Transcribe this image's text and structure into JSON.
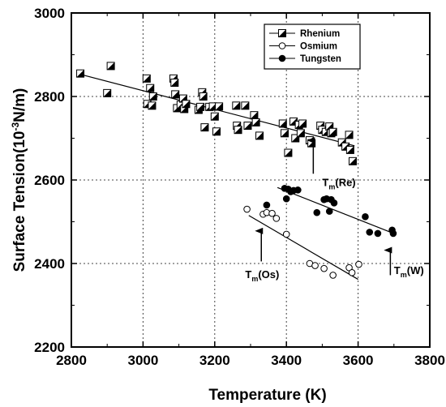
{
  "chart_data": {
    "type": "scatter",
    "xlabel": "Temperature (K)",
    "ylabel": "Surface Tension(10",
    "ylabel_sup": "-3",
    "ylabel_rest": "N/m)",
    "xlim": [
      2800,
      3800
    ],
    "ylim": [
      2200,
      3000
    ],
    "xticks": [
      2800,
      3000,
      3200,
      3400,
      3600,
      3800
    ],
    "yticks": [
      2200,
      2400,
      2600,
      2800,
      3000
    ],
    "grid": true,
    "legend_position": "top-right",
    "series": [
      {
        "name": "Rhenium",
        "marker": "half-filled-square",
        "color": "#000000",
        "points": [
          [
            2825,
            2855
          ],
          [
            2900,
            2808
          ],
          [
            2910,
            2873
          ],
          [
            3010,
            2843
          ],
          [
            3012,
            2782
          ],
          [
            3020,
            2820
          ],
          [
            3025,
            2778
          ],
          [
            3028,
            2800
          ],
          [
            3085,
            2843
          ],
          [
            3088,
            2833
          ],
          [
            3090,
            2805
          ],
          [
            3095,
            2772
          ],
          [
            3105,
            2780
          ],
          [
            3112,
            2795
          ],
          [
            3115,
            2770
          ],
          [
            3120,
            2782
          ],
          [
            3155,
            2768
          ],
          [
            3160,
            2775
          ],
          [
            3165,
            2810
          ],
          [
            3168,
            2800
          ],
          [
            3172,
            2726
          ],
          [
            3185,
            2775
          ],
          [
            3195,
            2776
          ],
          [
            3200,
            2752
          ],
          [
            3205,
            2716
          ],
          [
            3212,
            2776
          ],
          [
            3260,
            2778
          ],
          [
            3262,
            2730
          ],
          [
            3265,
            2720
          ],
          [
            3285,
            2778
          ],
          [
            3292,
            2730
          ],
          [
            3310,
            2755
          ],
          [
            3315,
            2738
          ],
          [
            3325,
            2706
          ],
          [
            3390,
            2735
          ],
          [
            3395,
            2712
          ],
          [
            3405,
            2665
          ],
          [
            3420,
            2740
          ],
          [
            3425,
            2700
          ],
          [
            3435,
            2732
          ],
          [
            3440,
            2712
          ],
          [
            3445,
            2735
          ],
          [
            3465,
            2695
          ],
          [
            3470,
            2688
          ],
          [
            3495,
            2730
          ],
          [
            3500,
            2720
          ],
          [
            3510,
            2715
          ],
          [
            3520,
            2728
          ],
          [
            3525,
            2712
          ],
          [
            3530,
            2715
          ],
          [
            3555,
            2690
          ],
          [
            3565,
            2680
          ],
          [
            3575,
            2708
          ],
          [
            3578,
            2672
          ],
          [
            3585,
            2645
          ]
        ],
        "fit": [
          [
            2825,
            2853
          ],
          [
            3590,
            2682
          ]
        ]
      },
      {
        "name": "Osmium",
        "marker": "open-circle",
        "color": "#000000",
        "points": [
          [
            3290,
            2530
          ],
          [
            3335,
            2518
          ],
          [
            3345,
            2522
          ],
          [
            3360,
            2520
          ],
          [
            3372,
            2508
          ],
          [
            3400,
            2470
          ],
          [
            3465,
            2400
          ],
          [
            3480,
            2395
          ],
          [
            3505,
            2388
          ],
          [
            3530,
            2372
          ],
          [
            3575,
            2390
          ],
          [
            3583,
            2378
          ],
          [
            3602,
            2398
          ]
        ],
        "fit": [
          [
            3295,
            2515
          ],
          [
            3600,
            2362
          ]
        ]
      },
      {
        "name": "Tungsten",
        "marker": "filled-circle",
        "color": "#000000",
        "points": [
          [
            3345,
            2540
          ],
          [
            3395,
            2580
          ],
          [
            3400,
            2555
          ],
          [
            3405,
            2578
          ],
          [
            3412,
            2572
          ],
          [
            3420,
            2575
          ],
          [
            3432,
            2576
          ],
          [
            3485,
            2522
          ],
          [
            3505,
            2553
          ],
          [
            3512,
            2555
          ],
          [
            3520,
            2525
          ],
          [
            3525,
            2553
          ],
          [
            3533,
            2545
          ],
          [
            3620,
            2512
          ],
          [
            3632,
            2475
          ],
          [
            3655,
            2472
          ],
          [
            3695,
            2480
          ],
          [
            3698,
            2472
          ]
        ],
        "fit": [
          [
            3375,
            2582
          ],
          [
            3705,
            2470
          ]
        ]
      }
    ],
    "annotations": [
      {
        "main": "T",
        "sub": "m",
        "rest": "(Re)"
      },
      {
        "main": "T",
        "sub": "m",
        "rest": "(Os)"
      },
      {
        "main": "T",
        "sub": "m",
        "rest": "(W)"
      }
    ]
  }
}
